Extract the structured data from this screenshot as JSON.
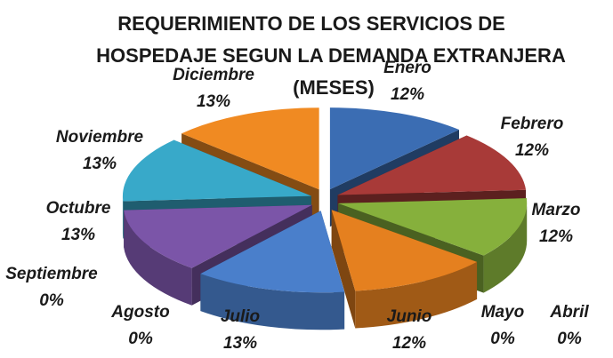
{
  "chart_data": {
    "type": "pie",
    "title": [
      "REQUERIMIENTO DE LOS SERVICIOS DE",
      "HOSPEDAJE SEGUN LA DEMANDA  EXTRANJERA",
      "(MESES)"
    ],
    "categories": [
      "Enero",
      "Febrero",
      "Marzo",
      "Abril",
      "Mayo",
      "Junio",
      "Julio",
      "Agosto",
      "Septiembre",
      "Octubre",
      "Noviembre",
      "Diciembre"
    ],
    "values": [
      12,
      12,
      12,
      0,
      0,
      12,
      13,
      0,
      0,
      13,
      13,
      13
    ],
    "value_labels": [
      "12%",
      "12%",
      "12%",
      "0%",
      "0%",
      "12%",
      "13%",
      "0%",
      "0%",
      "13%",
      "13%",
      "13%"
    ],
    "colors": [
      "#3b6db3",
      "#a83a38",
      "#86b03c",
      "#6f4f9c",
      "#2f9bbb",
      "#e5801f",
      "#4a7fcb",
      "#b04440",
      "#8cb848",
      "#7b55a8",
      "#38a9c9",
      "#f08a22"
    ]
  }
}
